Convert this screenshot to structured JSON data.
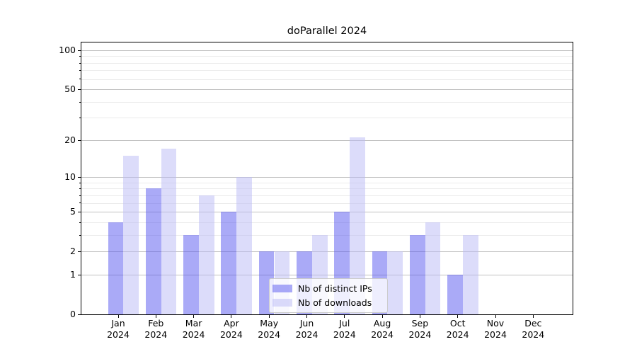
{
  "chart_data": {
    "type": "bar",
    "title": "doParallel 2024",
    "categories": [
      "Jan",
      "Feb",
      "Mar",
      "Apr",
      "May",
      "Jun",
      "Jul",
      "Aug",
      "Sep",
      "Oct",
      "Nov",
      "Dec"
    ],
    "category_year": "2024",
    "series": [
      {
        "name": "Nb of distinct IPs",
        "color": "#5555ef",
        "alpha": 0.5,
        "values": [
          4,
          8,
          3,
          5,
          2,
          2,
          5,
          2,
          3,
          1,
          0,
          0
        ]
      },
      {
        "name": "Nb of downloads",
        "color": "#b9b9f5",
        "alpha": 0.5,
        "values": [
          15,
          17,
          7,
          10,
          2,
          3,
          21,
          2,
          4,
          3,
          0,
          0
        ]
      }
    ],
    "yscale": "log1p",
    "ylim": [
      0,
      117
    ],
    "yticks_major": [
      0,
      1,
      2,
      5,
      10,
      20,
      50,
      100
    ],
    "yticks_minor": [
      3,
      4,
      6,
      7,
      8,
      9,
      30,
      40,
      60,
      70,
      80,
      90
    ],
    "xlabel": "",
    "ylabel": "",
    "grid": true,
    "legend_position": "lower center",
    "grid_major_color": "#c0c0c0",
    "grid_minor_color": "#ebebeb"
  }
}
